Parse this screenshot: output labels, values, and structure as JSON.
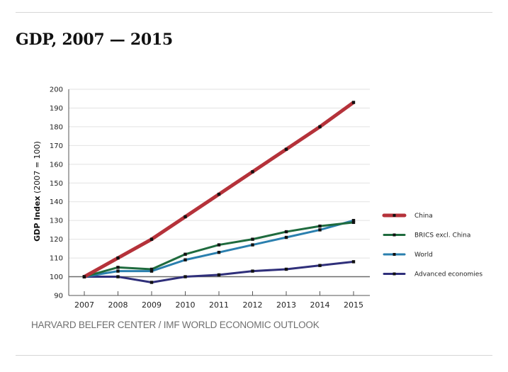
{
  "header": {
    "title": "GDP, 2007 — 2015"
  },
  "footer": {
    "source": "HARVARD BELFER CENTER / IMF WORLD ECONOMIC OUTLOOK"
  },
  "chart_data": {
    "type": "line",
    "title": "GDP, 2007 — 2015",
    "xlabel": "",
    "ylabel_bold": "GDP Index",
    "ylabel_rest": " (2007 = 100)",
    "ylabel": "GDP Index (2007 = 100)",
    "x": [
      "2007",
      "2008",
      "2009",
      "2010",
      "2011",
      "2012",
      "2013",
      "2014",
      "2015"
    ],
    "ylim": [
      90,
      200
    ],
    "yticks": [
      90,
      100,
      110,
      120,
      130,
      140,
      150,
      160,
      170,
      180,
      190,
      200
    ],
    "grid": true,
    "baseline": 100,
    "legend_position": "right",
    "series": [
      {
        "name": "China",
        "color": "#b5323a",
        "values": [
          100,
          110,
          120,
          132,
          144,
          156,
          168,
          180,
          193
        ]
      },
      {
        "name": "BRICS excl. China",
        "color": "#1f6b3e",
        "values": [
          100,
          105,
          104,
          112,
          117,
          120,
          124,
          127,
          129
        ]
      },
      {
        "name": "World",
        "color": "#2a7fae",
        "values": [
          100,
          103,
          103,
          109,
          113,
          117,
          121,
          125,
          130
        ]
      },
      {
        "name": "Advanced economies",
        "color": "#2f2f7a",
        "values": [
          100,
          100,
          97,
          100,
          101,
          103,
          104,
          106,
          108
        ]
      }
    ]
  }
}
